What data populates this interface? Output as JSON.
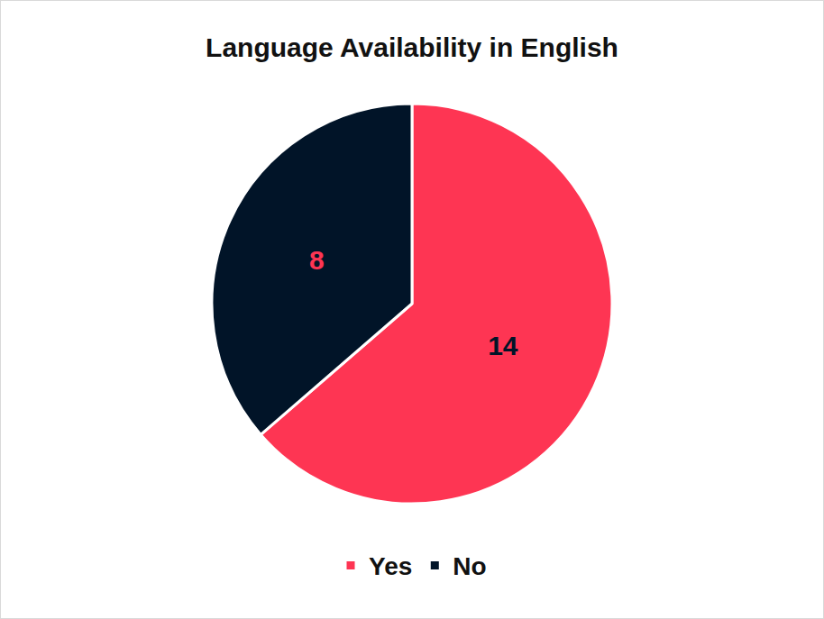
{
  "chart_data": {
    "type": "pie",
    "title": "Language Availability in English",
    "categories": [
      "Yes",
      "No"
    ],
    "values": [
      14,
      8
    ],
    "colors": [
      "#fe3553",
      "#011428"
    ],
    "data_labels": true,
    "legend": "bottom"
  }
}
